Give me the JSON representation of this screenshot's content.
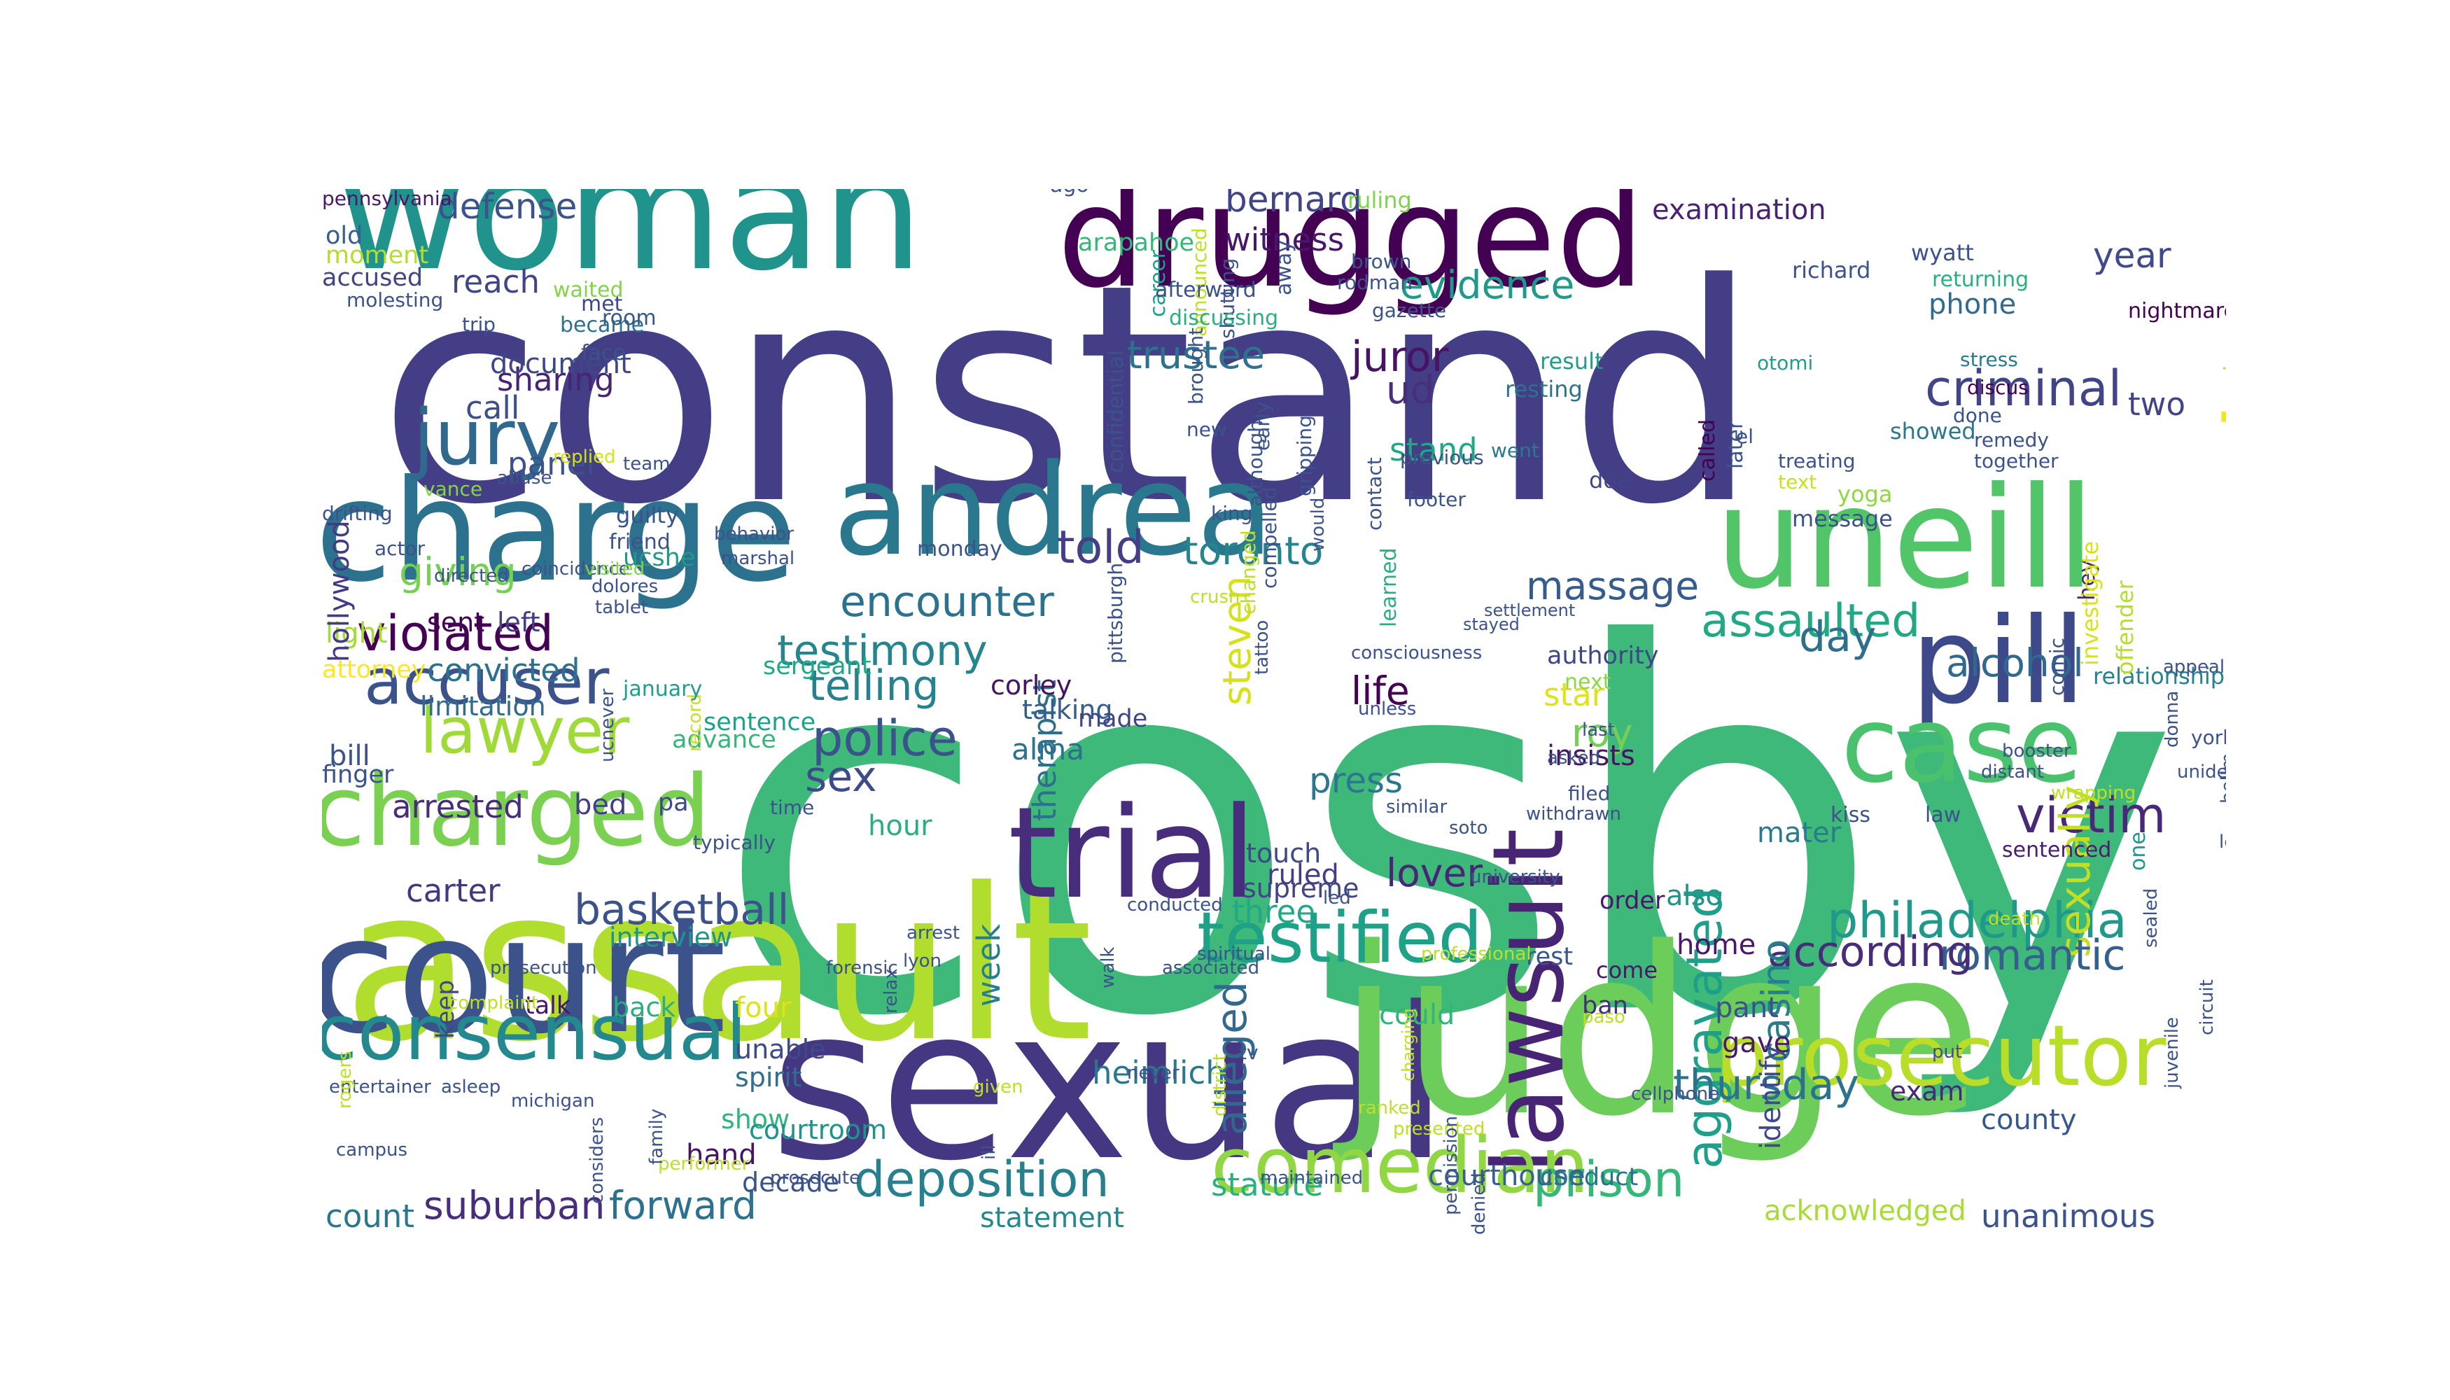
{
  "words": [
    {
      "text": "cosby",
      "c": "#3eb97a"
    },
    {
      "text": "constand",
      "c": "#433e85"
    },
    {
      "text": "sexual",
      "c": "#453781"
    },
    {
      "text": "assault",
      "c": "#b1dd2f"
    },
    {
      "text": "woman",
      "c": "#20938c"
    },
    {
      "text": "judge",
      "c": "#6ccd5a"
    },
    {
      "text": "drugged",
      "c": "#440154"
    },
    {
      "text": "court",
      "c": "#3b528b"
    },
    {
      "text": "charge",
      "c": "#2c728e"
    },
    {
      "text": "temple",
      "c": "#f1e51d"
    },
    {
      "text": "uneill",
      "c": "#52c569"
    },
    {
      "text": "trial",
      "c": "#472d7b"
    },
    {
      "text": "andrea",
      "c": "#2a788e"
    },
    {
      "text": "pill",
      "c": "#3e4989"
    },
    {
      "text": "case",
      "c": "#4ac16d"
    },
    {
      "text": "prosecutor",
      "c": "#b8de29"
    },
    {
      "text": "lawsuit",
      "c": "#482475"
    },
    {
      "text": "comedian",
      "c": "#90d743"
    },
    {
      "text": "charged",
      "c": "#7ad151"
    },
    {
      "text": "testified",
      "c": "#1fa187"
    },
    {
      "text": "consensual",
      "c": "#23898e"
    },
    {
      "text": "jury",
      "c": "#31688e"
    },
    {
      "text": "accuser",
      "c": "#3b528b"
    },
    {
      "text": "lawyer",
      "c": "#a0da39"
    },
    {
      "text": "criminal",
      "c": "#414487"
    },
    {
      "text": "philadelphia",
      "c": "#1f998a"
    },
    {
      "text": "aggravated",
      "c": "#1f9e89"
    },
    {
      "text": "assaulted",
      "c": "#22a884"
    },
    {
      "text": "violated",
      "c": "#440154"
    },
    {
      "text": "encounter",
      "c": "#2c728e"
    },
    {
      "text": "testimony",
      "c": "#25858e"
    },
    {
      "text": "deposition",
      "c": "#27808e"
    },
    {
      "text": "police",
      "c": "#3b528b"
    },
    {
      "text": "victim",
      "c": "#482878"
    },
    {
      "text": "verdict",
      "c": "#5ec962"
    },
    {
      "text": "sexually",
      "c": "#c2df23"
    },
    {
      "text": "prison",
      "c": "#35b779"
    },
    {
      "text": "thursday",
      "c": "#2c728e"
    },
    {
      "text": "romantic",
      "c": "#355f8d"
    },
    {
      "text": "told",
      "c": "#433e85"
    },
    {
      "text": "telling",
      "c": "#26828e"
    },
    {
      "text": "juror",
      "c": "#471365"
    },
    {
      "text": "basketball",
      "c": "#3b528b"
    },
    {
      "text": "alleged",
      "c": "#31688e"
    },
    {
      "text": "according",
      "c": "#472c7a"
    },
    {
      "text": "suburban",
      "c": "#472d7b"
    },
    {
      "text": "forward",
      "c": "#2c728e"
    },
    {
      "text": "evidence",
      "c": "#1f998a"
    },
    {
      "text": "defense",
      "c": "#3b528b"
    },
    {
      "text": "sex",
      "c": "#3e4a89"
    },
    {
      "text": "trustee",
      "c": "#2d718e"
    },
    {
      "text": "casino",
      "c": "#287d8e"
    },
    {
      "text": "toronto",
      "c": "#25848e"
    },
    {
      "text": "massage",
      "c": "#365c8d"
    },
    {
      "text": "giving",
      "c": "#75d054"
    },
    {
      "text": "alcohol",
      "c": "#31688e"
    },
    {
      "text": "steven",
      "c": "#d5e21a"
    },
    {
      "text": "day",
      "c": "#2e6f8e"
    },
    {
      "text": "life",
      "c": "#440154"
    },
    {
      "text": "press",
      "c": "#2a778e"
    },
    {
      "text": "roy",
      "c": "#73d056"
    },
    {
      "text": "star",
      "c": "#dde318"
    },
    {
      "text": "lover",
      "c": "#482576"
    },
    {
      "text": "bernard",
      "c": "#404588"
    },
    {
      "text": "witness",
      "c": "#481769"
    },
    {
      "text": "ud",
      "c": "#472f7d"
    },
    {
      "text": "stand",
      "c": "#22a785"
    },
    {
      "text": "therapist",
      "c": "#2d708e"
    },
    {
      "text": "year",
      "c": "#3e4a89"
    },
    {
      "text": "two",
      "c": "#414487"
    },
    {
      "text": "statute",
      "c": "#2ab07f"
    },
    {
      "text": "courthouse",
      "c": "#34618d"
    },
    {
      "text": "count",
      "c": "#2a768e"
    },
    {
      "text": "statement",
      "c": "#23898e"
    },
    {
      "text": "unanimous",
      "c": "#3b528b"
    },
    {
      "text": "acknowledged",
      "c": "#a8db34"
    },
    {
      "text": "county",
      "c": "#38588c"
    },
    {
      "text": "heimlich",
      "c": "#2a788e"
    },
    {
      "text": "panel",
      "c": "#3b528b"
    },
    {
      "text": "sharing",
      "c": "#482475"
    },
    {
      "text": "call",
      "c": "#3d4e8a"
    },
    {
      "text": "reach",
      "c": "#414487"
    },
    {
      "text": "document",
      "c": "#3f4788"
    },
    {
      "text": "phone",
      "c": "#306a8e"
    },
    {
      "text": "examination",
      "c": "#482374"
    },
    {
      "text": "corley",
      "c": "#471365"
    },
    {
      "text": "talking",
      "c": "#355e8d"
    },
    {
      "text": "alma",
      "c": "#2c728e"
    },
    {
      "text": "hour",
      "c": "#29af7f"
    },
    {
      "text": "bill",
      "c": "#3b528b"
    },
    {
      "text": "bed",
      "c": "#433e85"
    },
    {
      "text": "arrested",
      "c": "#472c7a"
    },
    {
      "text": "carter",
      "c": "#453781"
    },
    {
      "text": "three",
      "c": "#22a884"
    },
    {
      "text": "ruled",
      "c": "#433e85"
    },
    {
      "text": "supreme",
      "c": "#414487"
    },
    {
      "text": "week",
      "c": "#277f8e"
    },
    {
      "text": "four",
      "c": "#dde318"
    },
    {
      "text": "unable",
      "c": "#3e4989"
    },
    {
      "text": "spirit",
      "c": "#2e6e8e"
    },
    {
      "text": "show",
      "c": "#31b57b"
    },
    {
      "text": "hand",
      "c": "#471365"
    },
    {
      "text": "courtroom",
      "c": "#20928c"
    },
    {
      "text": "decade",
      "c": "#3b528b"
    },
    {
      "text": "gave",
      "c": "#481a6c"
    },
    {
      "text": "mater",
      "c": "#287c8e"
    },
    {
      "text": "also",
      "c": "#1f958b"
    },
    {
      "text": "home",
      "c": "#48186a"
    },
    {
      "text": "pant",
      "c": "#3b528b"
    },
    {
      "text": "exam",
      "c": "#482878"
    },
    {
      "text": "identify",
      "c": "#3e4989"
    },
    {
      "text": "could",
      "c": "#31b57b"
    },
    {
      "text": "conduct",
      "c": "#2c728e"
    },
    {
      "text": "insists",
      "c": "#471365"
    },
    {
      "text": "touch",
      "c": "#3e4989"
    },
    {
      "text": "convicted",
      "c": "#2c728e"
    },
    {
      "text": "limitation",
      "c": "#2f6c8e"
    },
    {
      "text": "attorney",
      "c": "#fde725"
    },
    {
      "text": "left",
      "c": "#433e85"
    },
    {
      "text": "sent",
      "c": "#440154"
    },
    {
      "text": "light",
      "c": "#a5db36"
    },
    {
      "text": "hollywood",
      "c": "#443983"
    },
    {
      "text": "accused",
      "c": "#414487"
    },
    {
      "text": "old",
      "c": "#355f8d"
    },
    {
      "text": "moment",
      "c": "#b5de2b"
    },
    {
      "text": "finger",
      "c": "#3b528b"
    },
    {
      "text": "interview",
      "c": "#1f958b"
    },
    {
      "text": "keep",
      "c": "#3f4788"
    },
    {
      "text": "talk",
      "c": "#481467"
    },
    {
      "text": "back",
      "c": "#29af7f"
    },
    {
      "text": "advance",
      "c": "#35b779"
    },
    {
      "text": "sentence",
      "c": "#1fa088"
    },
    {
      "text": "sergeant",
      "c": "#22a884"
    },
    {
      "text": "pa",
      "c": "#3e4989"
    },
    {
      "text": "hey",
      "c": "#482878"
    },
    {
      "text": "relationship",
      "c": "#26828e"
    },
    {
      "text": "offender",
      "c": "#b5de2b"
    },
    {
      "text": "investigate",
      "c": "#d8e219"
    },
    {
      "text": "authority",
      "c": "#404588"
    },
    {
      "text": "next",
      "c": "#8bd646"
    },
    {
      "text": "kiss",
      "c": "#3b528b"
    },
    {
      "text": "law",
      "c": "#3b528b"
    },
    {
      "text": "one",
      "c": "#1f988b"
    },
    {
      "text": "sentenced",
      "c": "#481f70"
    },
    {
      "text": "order",
      "c": "#481769"
    },
    {
      "text": "rest",
      "c": "#3a548c"
    },
    {
      "text": "come",
      "c": "#48186a"
    },
    {
      "text": "ban",
      "c": "#472c7a"
    },
    {
      "text": "result",
      "c": "#1f9e89"
    },
    {
      "text": "resting",
      "c": "#2c728e"
    },
    {
      "text": "doe",
      "c": "#414487"
    },
    {
      "text": "yoga",
      "c": "#90d743"
    },
    {
      "text": "showed",
      "c": "#2a778e"
    },
    {
      "text": "message",
      "c": "#3b528b"
    },
    {
      "text": "made",
      "c": "#414487"
    },
    {
      "text": "guilty",
      "c": "#3b528b"
    },
    {
      "text": "ucshe",
      "c": "#1f9a8a"
    },
    {
      "text": "friend",
      "c": "#3b528b"
    },
    {
      "text": "met",
      "c": "#3e4989"
    },
    {
      "text": "became",
      "c": "#2c728e"
    },
    {
      "text": "room",
      "c": "#38588c"
    },
    {
      "text": "face",
      "c": "#3b528b"
    },
    {
      "text": "arapahoe",
      "c": "#35b779"
    },
    {
      "text": "richard",
      "c": "#3b528b"
    },
    {
      "text": "wyatt",
      "c": "#3b528b"
    },
    {
      "text": "returning",
      "c": "#29af7f"
    },
    {
      "text": "nightmare",
      "c": "#440154"
    },
    {
      "text": "arm",
      "c": "#3b528b"
    },
    {
      "text": "arizona",
      "c": "#a8db34"
    },
    {
      "text": "lucero",
      "c": "#d2e21b"
    },
    {
      "text": "ruling",
      "c": "#7fd34e"
    },
    {
      "text": "ago",
      "c": "#3b528b"
    },
    {
      "text": "career",
      "c": "#1f9e89"
    },
    {
      "text": "confidential",
      "c": "#3b528b"
    },
    {
      "text": "announced",
      "c": "#bddf26"
    },
    {
      "text": "shutting",
      "c": "#3b528b"
    },
    {
      "text": "away",
      "c": "#3b528b"
    },
    {
      "text": "brown",
      "c": "#3b528b"
    },
    {
      "text": "rodman",
      "c": "#3b528b"
    },
    {
      "text": "gazette",
      "c": "#3b528b"
    },
    {
      "text": "afterward",
      "c": "#3b528b"
    },
    {
      "text": "waited",
      "c": "#84d44b"
    },
    {
      "text": "molesting",
      "c": "#3b528b"
    },
    {
      "text": "trip",
      "c": "#3b528b"
    },
    {
      "text": "pennsylvania",
      "c": "#481769"
    },
    {
      "text": "discussing",
      "c": "#29af7f"
    },
    {
      "text": "later",
      "c": "#3b528b"
    },
    {
      "text": "called",
      "c": "#440154"
    },
    {
      "text": "stress",
      "c": "#287c8e"
    },
    {
      "text": "discus",
      "c": "#440154"
    },
    {
      "text": "done",
      "c": "#3b528b"
    },
    {
      "text": "remedy",
      "c": "#3b528b"
    },
    {
      "text": "together",
      "c": "#3b528b"
    },
    {
      "text": "otomi",
      "c": "#1f9e89"
    },
    {
      "text": "el",
      "c": "#3b528b"
    },
    {
      "text": "treating",
      "c": "#3b528b"
    },
    {
      "text": "text",
      "c": "#c8e020"
    },
    {
      "text": "comic",
      "c": "#3b528b"
    },
    {
      "text": "went",
      "c": "#2a788e"
    },
    {
      "text": "previous",
      "c": "#3b528b"
    },
    {
      "text": "new",
      "c": "#3b528b"
    },
    {
      "text": "gripping",
      "c": "#3b528b"
    },
    {
      "text": "compelled",
      "c": "#3b528b"
    },
    {
      "text": "although",
      "c": "#3b528b"
    },
    {
      "text": "brought",
      "c": "#3b528b"
    },
    {
      "text": "early",
      "c": "#3b528b"
    },
    {
      "text": "changed",
      "c": "#bddf26"
    },
    {
      "text": "contact",
      "c": "#3b528b"
    },
    {
      "text": "footer",
      "c": "#3b528b"
    },
    {
      "text": "learned",
      "c": "#29af7f"
    },
    {
      "text": "abuse",
      "c": "#3b528b"
    },
    {
      "text": "replied",
      "c": "#d5e21a"
    },
    {
      "text": "team",
      "c": "#3b528b"
    },
    {
      "text": "vance",
      "c": "#84d44b"
    },
    {
      "text": "drifting",
      "c": "#3b528b"
    },
    {
      "text": "actor",
      "c": "#3b528b"
    },
    {
      "text": "behavior",
      "c": "#3b528b"
    },
    {
      "text": "directed",
      "c": "#3b528b"
    },
    {
      "text": "coincidence",
      "c": "#3b528b"
    },
    {
      "text": "visited",
      "c": "#84d44b"
    },
    {
      "text": "ucnever",
      "c": "#3b528b"
    },
    {
      "text": "record",
      "c": "#c8e020"
    },
    {
      "text": "dolores",
      "c": "#3b528b"
    },
    {
      "text": "tablet",
      "c": "#3b528b"
    },
    {
      "text": "january",
      "c": "#1f9e89"
    },
    {
      "text": "marshal",
      "c": "#3b528b"
    },
    {
      "text": "typically",
      "c": "#3b528b"
    },
    {
      "text": "time",
      "c": "#3b528b"
    },
    {
      "text": "monday",
      "c": "#3b528b"
    },
    {
      "text": "king",
      "c": "#3b528b"
    },
    {
      "text": "pittsburgh",
      "c": "#3b528b"
    },
    {
      "text": "crush",
      "c": "#bddf26"
    },
    {
      "text": "tattoo",
      "c": "#3b528b"
    },
    {
      "text": "stayed",
      "c": "#3b528b"
    },
    {
      "text": "settlement",
      "c": "#3b528b"
    },
    {
      "text": "would",
      "c": "#3b528b"
    },
    {
      "text": "asked",
      "c": "#3b528b"
    },
    {
      "text": "filed",
      "c": "#3b528b"
    },
    {
      "text": "withdrawn",
      "c": "#3b528b"
    },
    {
      "text": "last",
      "c": "#3b528b"
    },
    {
      "text": "unless",
      "c": "#3b528b"
    },
    {
      "text": "similar",
      "c": "#3b528b"
    },
    {
      "text": "consciousness",
      "c": "#3b528b"
    },
    {
      "text": "ranked",
      "c": "#bddf26"
    },
    {
      "text": "led",
      "c": "#3b528b"
    },
    {
      "text": "soto",
      "c": "#3b528b"
    },
    {
      "text": "university",
      "c": "#3b528b"
    },
    {
      "text": "appeal",
      "c": "#3b528b"
    },
    {
      "text": "sitcom",
      "c": "#bddf26"
    },
    {
      "text": "donna",
      "c": "#3b528b"
    },
    {
      "text": "york",
      "c": "#3b528b"
    },
    {
      "text": "distant",
      "c": "#3b528b"
    },
    {
      "text": "booster",
      "c": "#3b528b"
    },
    {
      "text": "unidentified",
      "c": "#3b528b"
    },
    {
      "text": "appeared",
      "c": "#3b528b"
    },
    {
      "text": "wrapping",
      "c": "#bddf26"
    },
    {
      "text": "held",
      "c": "#3b528b"
    },
    {
      "text": "sealed",
      "c": "#3b528b"
    },
    {
      "text": "college",
      "c": "#bddf26"
    },
    {
      "text": "previously",
      "c": "#bddf26"
    },
    {
      "text": "bellm",
      "c": "#3b528b"
    },
    {
      "text": "death",
      "c": "#bddf26"
    },
    {
      "text": "lease",
      "c": "#3b528b"
    },
    {
      "text": "juvenile",
      "c": "#3b528b"
    },
    {
      "text": "circuit",
      "c": "#3b528b"
    },
    {
      "text": "hilton",
      "c": "#3b528b"
    },
    {
      "text": "focused",
      "c": "#3b528b"
    },
    {
      "text": "put",
      "c": "#3b528b"
    },
    {
      "text": "paso",
      "c": "#bddf26"
    },
    {
      "text": "cellphone",
      "c": "#3b528b"
    },
    {
      "text": "professional",
      "c": "#bddf26"
    },
    {
      "text": "presented",
      "c": "#bddf26"
    },
    {
      "text": "tv",
      "c": "#3b528b"
    },
    {
      "text": "charging",
      "c": "#bddf26"
    },
    {
      "text": "permission",
      "c": "#3b528b"
    },
    {
      "text": "denied",
      "c": "#3b528b"
    },
    {
      "text": "maintained",
      "c": "#3b528b"
    },
    {
      "text": "conducted",
      "c": "#3b528b"
    },
    {
      "text": "walk",
      "c": "#3b528b"
    },
    {
      "text": "spiritual",
      "c": "#3b528b"
    },
    {
      "text": "associated",
      "c": "#3b528b"
    },
    {
      "text": "district",
      "c": "#bddf26"
    },
    {
      "text": "never",
      "c": "#3b528b"
    },
    {
      "text": "given",
      "c": "#bddf26"
    },
    {
      "text": "ill",
      "c": "#3b528b"
    },
    {
      "text": "relax",
      "c": "#3b528b"
    },
    {
      "text": "lyon",
      "c": "#3b528b"
    },
    {
      "text": "arrest",
      "c": "#3b528b"
    },
    {
      "text": "forensic",
      "c": "#3b528b"
    },
    {
      "text": "prosecute",
      "c": "#3b528b"
    },
    {
      "text": "performer",
      "c": "#bddf26"
    },
    {
      "text": "family",
      "c": "#3b528b"
    },
    {
      "text": "considers",
      "c": "#3b528b"
    },
    {
      "text": "campus",
      "c": "#3b528b"
    },
    {
      "text": "entertainer",
      "c": "#3b528b"
    },
    {
      "text": "asleep",
      "c": "#3b528b"
    },
    {
      "text": "michigan",
      "c": "#3b528b"
    },
    {
      "text": "complaint",
      "c": "#bddf26"
    },
    {
      "text": "prosecution",
      "c": "#3b528b"
    },
    {
      "text": "rogers",
      "c": "#bddf26"
    }
  ]
}
